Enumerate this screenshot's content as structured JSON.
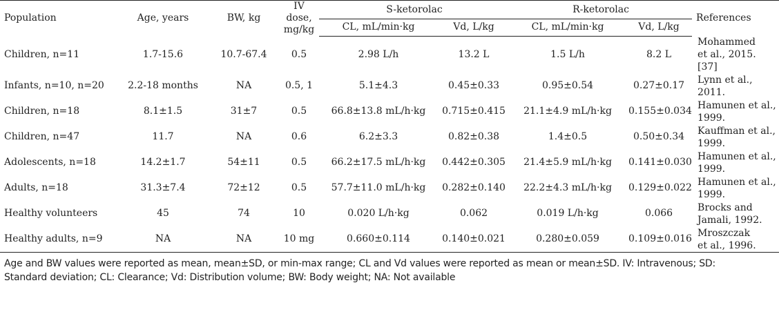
{
  "table": {
    "headers": {
      "population": "Population",
      "age": "Age, years",
      "bw": "BW, kg",
      "iv_dose_line1": "IV dose,",
      "iv_dose_line2": "mg/kg",
      "s_group": "S-ketorolac",
      "r_group": "R-ketorolac",
      "references": "References",
      "s_cl": "CL, mL/min·kg",
      "s_vd": "Vd, L/kg",
      "r_cl": "CL, mL/min·kg",
      "r_vd": "Vd, L/kg"
    },
    "rows": [
      {
        "population": "Children, n=11",
        "age": "1.7-15.6",
        "bw": "10.7-67.4",
        "dose": "0.5",
        "s_cl": "2.98 L/h",
        "s_vd": "13.2 L",
        "r_cl": "1.5 L/h",
        "r_vd": "8.2 L",
        "ref1": "Mohammed",
        "ref2": "et al., 2015. [37]"
      },
      {
        "population": "Infants, n=10, n=20",
        "age": "2.2-18 months",
        "bw": "NA",
        "dose": "0.5, 1",
        "s_cl": "5.1±4.3",
        "s_vd": "0.45±0.33",
        "r_cl": "0.95±0.54",
        "r_vd": "0.27±0.17",
        "ref1": "Lynn et al., 2011.",
        "ref2": ""
      },
      {
        "population": "Children, n=18",
        "age": "8.1±1.5",
        "bw": "31±7",
        "dose": "0.5",
        "s_cl": "66.8±13.8 mL/h·kg",
        "s_vd": "0.715±0.415",
        "r_cl": "21.1±4.9 mL/h·kg",
        "r_vd": "0.155±0.034",
        "ref1": "Hamunen et al.,",
        "ref2": "1999."
      },
      {
        "population": "Children, n=47",
        "age": "11.7",
        "bw": "NA",
        "dose": "0.6",
        "s_cl": "6.2±3.3",
        "s_vd": "0.82±0.38",
        "r_cl": "1.4±0.5",
        "r_vd": "0.50±0.34",
        "ref1": "Kauffman et al.,",
        "ref2": "1999."
      },
      {
        "population": "Adolescents, n=18",
        "age": "14.2±1.7",
        "bw": "54±11",
        "dose": "0.5",
        "s_cl": "66.2±17.5 mL/h·kg",
        "s_vd": "0.442±0.305",
        "r_cl": "21.4±5.9 mL/h·kg",
        "r_vd": "0.141±0.030",
        "ref1": "Hamunen et al.,",
        "ref2": "1999."
      },
      {
        "population": "Adults, n=18",
        "age": "31.3±7.4",
        "bw": "72±12",
        "dose": "0.5",
        "s_cl": "57.7±11.0 mL/h·kg",
        "s_vd": "0.282±0.140",
        "r_cl": "22.2±4.3 mL/h·kg",
        "r_vd": "0.129±0.022",
        "ref1": "Hamunen et al.,",
        "ref2": "1999."
      },
      {
        "population": "Healthy volunteers",
        "age": "45",
        "bw": "74",
        "dose": "10",
        "s_cl": "0.020 L/h·kg",
        "s_vd": "0.062",
        "r_cl": "0.019 L/h·kg",
        "r_vd": "0.066",
        "ref1": "Brocks and",
        "ref2": "Jamali, 1992."
      },
      {
        "population": "Healthy adults, n=9",
        "age": "NA",
        "bw": "NA",
        "dose": "10 mg",
        "s_cl": "0.660±0.114",
        "s_vd": "0.140±0.021",
        "r_cl": "0.280±0.059",
        "r_vd": "0.109±0.016",
        "ref1": "Mroszczak",
        "ref2": "et al., 1996."
      }
    ]
  },
  "footnote": {
    "line1": "Age and BW values were reported as mean, mean±SD, or min-max range; CL and Vd values were reported as mean or mean±SD. IV: Intravenous; SD:",
    "line2": "Standard deviation; CL: Clearance; Vd: Distribution volume; BW: Body weight; NA: Not available"
  }
}
